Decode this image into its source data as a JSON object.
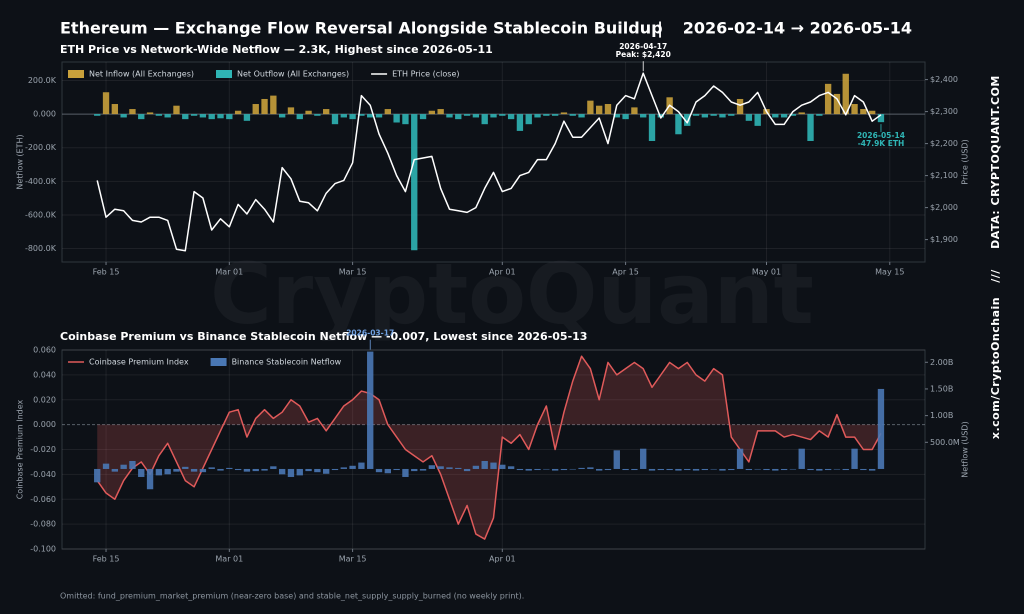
{
  "header": {
    "title": "Ethereum — Exchange Flow Reversal Alongside Stablecoin Buildup",
    "separator": "|",
    "date_range": "2026-02-14 → 2026-05-14"
  },
  "watermark": "CryptoQuant",
  "side": {
    "source": "DATA: CRYPTOQUANT.COM",
    "divider": "///",
    "handle": "x.com/CryptoOnchain"
  },
  "footer": "Omitted: fund_premium_market_premium (near-zero base) and stable_net_supply_supply_burned (no weekly print).",
  "chart_data": [
    {
      "type": "bar_line",
      "title": "ETH Price vs Network-Wide Netflow — 2.3K, Highest since 2026-05-11",
      "ylabel": "Netflow (ETH)",
      "y2label": "Price (USD)",
      "grid": true,
      "legend": "upper-left",
      "xlim": [
        "2026-02-10",
        "2026-05-19"
      ],
      "xticks": [
        {
          "value": "2026-02-15",
          "label": "Feb 15"
        },
        {
          "value": "2026-03-01",
          "label": "Mar 01"
        },
        {
          "value": "2026-03-15",
          "label": "Mar 15"
        },
        {
          "value": "2026-04-01",
          "label": "Apr 01"
        },
        {
          "value": "2026-04-15",
          "label": "Apr 15"
        },
        {
          "value": "2026-05-01",
          "label": "May 01"
        },
        {
          "value": "2026-05-15",
          "label": "May 15"
        }
      ],
      "ylim": [
        -880000,
        310000
      ],
      "yticks": [
        {
          "value": 200000,
          "label": "200.0K"
        },
        {
          "value": 0,
          "label": "0.000"
        },
        {
          "value": -200000,
          "label": "-200.0K"
        },
        {
          "value": -400000,
          "label": "-400.0K"
        },
        {
          "value": -600000,
          "label": "-600.0K"
        },
        {
          "value": -800000,
          "label": "-800.0K"
        }
      ],
      "y2lim": [
        1830,
        2455
      ],
      "y2ticks": [
        {
          "value": 1900,
          "label": "$1,900"
        },
        {
          "value": 2000,
          "label": "$2,000"
        },
        {
          "value": 2100,
          "label": "$2,100"
        },
        {
          "value": 2200,
          "label": "$2,200"
        },
        {
          "value": 2300,
          "label": "$2,300"
        },
        {
          "value": 2400,
          "label": "$2,400"
        }
      ],
      "x": [
        "2026-02-14",
        "2026-02-15",
        "2026-02-16",
        "2026-02-17",
        "2026-02-18",
        "2026-02-19",
        "2026-02-20",
        "2026-02-21",
        "2026-02-22",
        "2026-02-23",
        "2026-02-24",
        "2026-02-25",
        "2026-02-26",
        "2026-02-27",
        "2026-02-28",
        "2026-03-01",
        "2026-03-02",
        "2026-03-03",
        "2026-03-04",
        "2026-03-05",
        "2026-03-06",
        "2026-03-07",
        "2026-03-08",
        "2026-03-09",
        "2026-03-10",
        "2026-03-11",
        "2026-03-12",
        "2026-03-13",
        "2026-03-14",
        "2026-03-15",
        "2026-03-16",
        "2026-03-17",
        "2026-03-18",
        "2026-03-19",
        "2026-03-20",
        "2026-03-21",
        "2026-03-22",
        "2026-03-23",
        "2026-03-24",
        "2026-03-25",
        "2026-03-26",
        "2026-03-27",
        "2026-03-28",
        "2026-03-29",
        "2026-03-30",
        "2026-03-31",
        "2026-04-01",
        "2026-04-02",
        "2026-04-03",
        "2026-04-04",
        "2026-04-05",
        "2026-04-06",
        "2026-04-07",
        "2026-04-08",
        "2026-04-09",
        "2026-04-10",
        "2026-04-11",
        "2026-04-12",
        "2026-04-13",
        "2026-04-14",
        "2026-04-15",
        "2026-04-16",
        "2026-04-17",
        "2026-04-18",
        "2026-04-19",
        "2026-04-20",
        "2026-04-21",
        "2026-04-22",
        "2026-04-23",
        "2026-04-24",
        "2026-04-25",
        "2026-04-26",
        "2026-04-27",
        "2026-04-28",
        "2026-04-29",
        "2026-04-30",
        "2026-05-01",
        "2026-05-02",
        "2026-05-03",
        "2026-05-04",
        "2026-05-05",
        "2026-05-06",
        "2026-05-07",
        "2026-05-08",
        "2026-05-09",
        "2026-05-10",
        "2026-05-11",
        "2026-05-12",
        "2026-05-13",
        "2026-05-14"
      ],
      "series": [
        {
          "name": "Net Inflow (All Exchanges)",
          "type": "bar",
          "axis": "y",
          "color": "#c9a13b",
          "values": [
            null,
            130000,
            60000,
            null,
            30000,
            null,
            10000,
            null,
            null,
            50000,
            null,
            null,
            null,
            null,
            null,
            null,
            20000,
            null,
            60000,
            90000,
            110000,
            null,
            40000,
            null,
            20000,
            null,
            30000,
            null,
            null,
            null,
            null,
            null,
            null,
            30000,
            null,
            null,
            null,
            null,
            20000,
            30000,
            null,
            null,
            null,
            null,
            null,
            null,
            null,
            null,
            null,
            null,
            null,
            null,
            null,
            10000,
            null,
            null,
            80000,
            50000,
            60000,
            null,
            null,
            40000,
            null,
            null,
            null,
            100000,
            null,
            null,
            null,
            null,
            null,
            null,
            null,
            90000,
            null,
            null,
            30000,
            null,
            null,
            null,
            10000,
            null,
            null,
            180000,
            120000,
            240000,
            60000,
            30000,
            20000,
            null
          ]
        },
        {
          "name": "Net Outflow (All Exchanges)",
          "type": "bar",
          "axis": "y",
          "color": "#2fb5b5",
          "values": [
            -10000,
            null,
            null,
            -20000,
            null,
            -30000,
            null,
            -10000,
            -20000,
            null,
            -30000,
            -10000,
            -20000,
            -30000,
            -25000,
            -30000,
            null,
            -40000,
            null,
            null,
            null,
            -20000,
            null,
            -30000,
            null,
            -10000,
            null,
            -60000,
            -20000,
            -30000,
            -10000,
            -20000,
            -20000,
            null,
            -50000,
            -60000,
            -810000,
            -30000,
            null,
            null,
            -20000,
            -30000,
            -10000,
            -20000,
            -60000,
            -20000,
            -10000,
            -30000,
            -100000,
            -60000,
            -20000,
            -10000,
            -10000,
            null,
            -10000,
            -20000,
            null,
            null,
            null,
            -20000,
            -30000,
            null,
            -20000,
            -160000,
            -20000,
            null,
            -120000,
            -70000,
            -10000,
            -20000,
            -10000,
            -20000,
            -10000,
            null,
            -40000,
            -70000,
            null,
            -20000,
            -20000,
            -10000,
            null,
            -160000,
            -10000,
            null,
            null,
            null,
            null,
            null,
            null,
            -47900
          ]
        },
        {
          "name": "ETH Price (close)",
          "type": "line",
          "axis": "y2",
          "color": "#ffffff",
          "values": [
            2085,
            1970,
            1995,
            1990,
            1960,
            1955,
            1970,
            1970,
            1960,
            1870,
            1865,
            2050,
            2030,
            1930,
            1965,
            1940,
            2010,
            1980,
            2025,
            1995,
            1955,
            2125,
            2090,
            2020,
            2015,
            1990,
            2045,
            2075,
            2085,
            2140,
            2350,
            2320,
            2230,
            2170,
            2100,
            2050,
            2150,
            2155,
            2160,
            2060,
            1995,
            1990,
            1985,
            2000,
            2060,
            2110,
            2050,
            2060,
            2100,
            2110,
            2150,
            2150,
            2200,
            2270,
            2220,
            2220,
            2250,
            2280,
            2200,
            2320,
            2350,
            2340,
            2420,
            2350,
            2280,
            2320,
            2300,
            2265,
            2330,
            2350,
            2380,
            2360,
            2330,
            2320,
            2330,
            2360,
            2300,
            2260,
            2260,
            2300,
            2320,
            2330,
            2350,
            2360,
            2340,
            2290,
            2350,
            2330,
            2270,
            2290
          ]
        }
      ],
      "annotations": [
        {
          "x": "2026-04-17",
          "y": 2420,
          "axis": "y2",
          "color": "#ffffff",
          "lines": [
            "2026-04-17",
            "Peak: $2,420"
          ]
        },
        {
          "x": "2026-05-14",
          "y": -47900,
          "axis": "y",
          "color": "#2fb5b5",
          "lines": [
            "2026-05-14",
            "-47.9K ETH"
          ]
        }
      ]
    },
    {
      "type": "bar_line",
      "title": "Coinbase Premium vs Binance Stablecoin Netflow — -0.007, Lowest since 2026-05-13",
      "ylabel": "Coinbase Premium Index",
      "y2label": "Netflow (USD)",
      "grid": true,
      "legend": "upper-left",
      "xlim": [
        "2026-02-10",
        "2026-05-19"
      ],
      "xticks": [
        {
          "value": "2026-02-15",
          "label": "Feb 15"
        },
        {
          "value": "2026-03-01",
          "label": "Mar 01"
        },
        {
          "value": "2026-03-15",
          "label": "Mar 15"
        },
        {
          "value": "2026-04-01",
          "label": "Apr 01"
        }
      ],
      "ylim": [
        -0.1,
        0.06
      ],
      "yticks": [
        {
          "value": 0.06,
          "label": "0.060"
        },
        {
          "value": 0.04,
          "label": "0.040"
        },
        {
          "value": 0.02,
          "label": "0.020"
        },
        {
          "value": 0,
          "label": "0.000"
        },
        {
          "value": -0.02,
          "label": "-0.020"
        },
        {
          "value": -0.04,
          "label": "-0.040"
        },
        {
          "value": -0.06,
          "label": "-0.060"
        },
        {
          "value": -0.08,
          "label": "-0.080"
        },
        {
          "value": -0.1,
          "label": "-0.100"
        }
      ],
      "y2lim": [
        -1500000000,
        2230000000
      ],
      "y2ticks": [
        {
          "value": 500000000,
          "label": "500.0M"
        },
        {
          "value": 1000000000,
          "label": "1.00B"
        },
        {
          "value": 1500000000,
          "label": "1.50B"
        },
        {
          "value": 2000000000,
          "label": "2.00B"
        }
      ],
      "x": [
        "2026-02-14",
        "2026-02-15",
        "2026-02-16",
        "2026-02-17",
        "2026-02-18",
        "2026-02-19",
        "2026-02-20",
        "2026-02-21",
        "2026-02-22",
        "2026-02-23",
        "2026-02-24",
        "2026-02-25",
        "2026-02-26",
        "2026-02-27",
        "2026-02-28",
        "2026-03-01",
        "2026-03-02",
        "2026-03-03",
        "2026-03-04",
        "2026-03-05",
        "2026-03-06",
        "2026-03-07",
        "2026-03-08",
        "2026-03-09",
        "2026-03-10",
        "2026-03-11",
        "2026-03-12",
        "2026-03-13",
        "2026-03-14",
        "2026-03-15",
        "2026-03-16",
        "2026-03-17",
        "2026-03-18",
        "2026-03-19",
        "2026-03-20",
        "2026-03-21",
        "2026-03-22",
        "2026-03-23",
        "2026-03-24",
        "2026-03-25",
        "2026-03-26",
        "2026-03-27",
        "2026-03-28",
        "2026-03-29",
        "2026-03-30",
        "2026-03-31",
        "2026-04-01",
        "2026-04-02",
        "2026-04-03",
        "2026-04-04",
        "2026-04-05",
        "2026-04-06",
        "2026-04-07",
        "2026-04-08",
        "2026-04-09",
        "2026-04-10",
        "2026-04-11",
        "2026-04-12",
        "2026-04-13",
        "2026-04-14",
        "2026-04-15",
        "2026-04-16",
        "2026-04-17",
        "2026-04-18",
        "2026-04-19",
        "2026-04-20",
        "2026-04-21",
        "2026-04-22",
        "2026-04-23",
        "2026-04-24",
        "2026-04-25",
        "2026-04-26",
        "2026-04-27",
        "2026-04-28",
        "2026-04-29",
        "2026-04-30",
        "2026-05-01",
        "2026-05-02",
        "2026-05-03",
        "2026-05-04",
        "2026-05-05",
        "2026-05-06",
        "2026-05-07",
        "2026-05-08",
        "2026-05-09",
        "2026-05-10",
        "2026-05-11",
        "2026-05-12",
        "2026-05-13",
        "2026-05-14"
      ],
      "series": [
        {
          "name": "Coinbase Premium Index",
          "type": "line",
          "axis": "y",
          "color": "#e05a5a",
          "fill_to_zero": true,
          "values": [
            -0.045,
            -0.055,
            -0.06,
            -0.045,
            -0.035,
            -0.03,
            -0.04,
            -0.025,
            -0.015,
            -0.03,
            -0.045,
            -0.05,
            -0.035,
            -0.02,
            -0.005,
            0.01,
            0.012,
            -0.01,
            0.005,
            0.012,
            0.005,
            0.01,
            0.02,
            0.015,
            0.002,
            0.005,
            -0.005,
            0.005,
            0.015,
            0.02,
            0.027,
            0.025,
            0.02,
            0.0,
            -0.01,
            -0.02,
            -0.025,
            -0.03,
            -0.025,
            -0.04,
            -0.06,
            -0.08,
            -0.065,
            -0.088,
            -0.092,
            -0.075,
            -0.01,
            -0.015,
            -0.008,
            -0.02,
            0.0,
            0.015,
            -0.02,
            0.01,
            0.035,
            0.055,
            0.045,
            0.02,
            0.05,
            0.04,
            0.045,
            0.05,
            0.045,
            0.03,
            0.04,
            0.05,
            0.045,
            0.05,
            0.04,
            0.035,
            0.045,
            0.04,
            -0.01,
            -0.02,
            -0.03,
            -0.005,
            -0.005,
            -0.005,
            -0.01,
            -0.008,
            -0.01,
            -0.012,
            -0.005,
            -0.01,
            0.008,
            -0.01,
            -0.01,
            -0.02,
            -0.02,
            -0.007
          ]
        },
        {
          "name": "Binance Stablecoin Netflow",
          "type": "bar",
          "axis": "y2",
          "color": "#4a78b5",
          "values": [
            -250000000,
            100000000,
            -50000000,
            80000000,
            150000000,
            -150000000,
            -380000000,
            -120000000,
            -100000000,
            -50000000,
            40000000,
            -50000000,
            -60000000,
            30000000,
            -30000000,
            20000000,
            -20000000,
            -50000000,
            -40000000,
            -30000000,
            50000000,
            -100000000,
            -150000000,
            -120000000,
            -40000000,
            -60000000,
            -90000000,
            -20000000,
            30000000,
            60000000,
            120000000,
            2200000000,
            -60000000,
            -80000000,
            -20000000,
            -150000000,
            -40000000,
            -30000000,
            70000000,
            50000000,
            30000000,
            20000000,
            -40000000,
            60000000,
            150000000,
            120000000,
            80000000,
            50000000,
            -20000000,
            -30000000,
            -20000000,
            -10000000,
            -30000000,
            -20000000,
            -10000000,
            20000000,
            30000000,
            -30000000,
            -20000000,
            350000000,
            -20000000,
            -20000000,
            380000000,
            -30000000,
            -20000000,
            -20000000,
            -30000000,
            -20000000,
            -30000000,
            -20000000,
            -10000000,
            -30000000,
            -20000000,
            380000000,
            -20000000,
            -10000000,
            -20000000,
            -30000000,
            -20000000,
            -10000000,
            380000000,
            -20000000,
            -30000000,
            -20000000,
            -10000000,
            -20000000,
            380000000,
            -20000000,
            -30000000,
            1500000000
          ]
        }
      ],
      "annotations": [
        {
          "x": "2026-03-17",
          "y": 2200000000,
          "axis": "y2",
          "color": "#6fa0e0",
          "lines": [
            "2026-03-17"
          ]
        }
      ]
    }
  ]
}
